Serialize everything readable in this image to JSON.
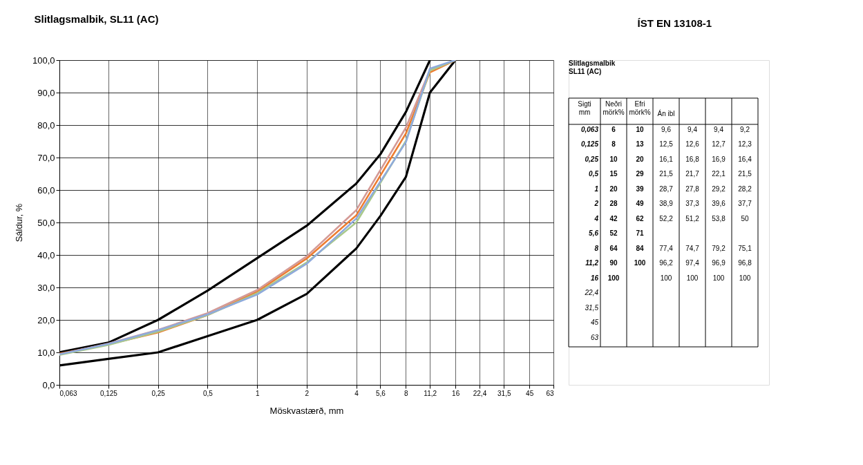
{
  "chart_data": [
    {
      "type": "line",
      "title": "Slitlagsmalbik, SL11 (AC)",
      "xlabel": "Möskvastærð, mm",
      "ylabel": "Sáldur, %",
      "log": "x",
      "grid": true,
      "xlim": [
        0.063,
        63
      ],
      "xticks": [
        {
          "value": 0.063,
          "label": "0,063"
        },
        {
          "value": 0.125,
          "label": "0,125"
        },
        {
          "value": 0.25,
          "label": "0,25"
        },
        {
          "value": 0.5,
          "label": "0,5"
        },
        1,
        2,
        4,
        {
          "value": 5.6,
          "label": "5,6"
        },
        8,
        {
          "value": 11.2,
          "label": "11,2"
        },
        16,
        {
          "value": 22.4,
          "label": "22,4"
        },
        {
          "value": 31.5,
          "label": "31,5"
        },
        45,
        63
      ],
      "ylim": [
        0,
        100
      ],
      "yticks": [
        {
          "value": 0,
          "label": "0,0"
        },
        {
          "value": 10,
          "label": "10,0"
        },
        {
          "value": 20,
          "label": "20,0"
        },
        {
          "value": 30,
          "label": "30,0"
        },
        {
          "value": 40,
          "label": "40,0"
        },
        {
          "value": 50,
          "label": "50,0"
        },
        {
          "value": 60,
          "label": "60,0"
        },
        {
          "value": 70,
          "label": "70,0"
        },
        {
          "value": 80,
          "label": "80,0"
        },
        {
          "value": 90,
          "label": "90,0"
        },
        {
          "value": 100,
          "label": "100,0"
        }
      ],
      "series": [
        {
          "color": "#000000",
          "x": [
            0.063,
            0.125,
            0.25,
            0.5,
            1,
            2,
            4,
            5.6,
            8,
            11.2,
            16
          ],
          "values": [
            6,
            8,
            10,
            15,
            20,
            28,
            42,
            52,
            64,
            90,
            100
          ]
        },
        {
          "color": "#000000",
          "x": [
            0.063,
            0.125,
            0.25,
            0.5,
            1,
            2,
            4,
            5.6,
            8,
            11.2
          ],
          "values": [
            10,
            13,
            20,
            29,
            39,
            49,
            62,
            71,
            84,
            100
          ]
        },
        {
          "color": "#ed7d31",
          "x": [
            0.063,
            0.125,
            0.25,
            0.5,
            1,
            2,
            4,
            8,
            11.2,
            16
          ],
          "values": [
            9.6,
            12.5,
            16.1,
            21.5,
            28.7,
            38.9,
            52.2,
            77.4,
            96.2,
            100
          ]
        },
        {
          "color": "#d49a96",
          "x": [
            0.063,
            0.125,
            0.25,
            0.5,
            1,
            2,
            4,
            8,
            11.2,
            16
          ],
          "values": [
            9.4,
            12.7,
            16.9,
            22.1,
            29.2,
            39.6,
            53.8,
            79.2,
            96.9,
            100
          ]
        },
        {
          "color": "#a9c98a",
          "x": [
            0.063,
            0.125,
            0.25,
            0.5,
            1,
            2,
            4,
            8,
            11.2,
            16
          ],
          "values": [
            9.2,
            12.3,
            16.4,
            21.5,
            28.2,
            37.7,
            50,
            75.1,
            96.8,
            100
          ]
        },
        {
          "color": "#8faadc",
          "x": [
            0.063,
            0.125,
            0.25,
            0.5,
            1,
            2,
            4,
            8,
            11.2,
            16
          ],
          "values": [
            9.4,
            12.6,
            16.8,
            21.7,
            27.8,
            37.3,
            51.2,
            74.7,
            97.4,
            100
          ]
        }
      ]
    },
    {
      "type": "heatmap",
      "title": "ÍST EN 13108-1",
      "subtitle": "Slitlagsmalbik\nSL11 (AC)",
      "ylabel": "Sigti\nmm",
      "categories": [
        "Neðri\nmörk%",
        "Efri\nmörk%",
        "Án ibl",
        null,
        null,
        null
      ],
      "y_categories": [
        "0,063",
        "0,125",
        "0,25",
        "0,5",
        "1",
        "2",
        "4",
        "5,6",
        "8",
        "11,2",
        "16",
        "22,4",
        "31,5",
        "45",
        "63"
      ],
      "cells": [
        [
          6,
          10,
          9.6,
          9.4,
          9.4,
          9.2
        ],
        [
          8,
          13,
          12.5,
          12.6,
          12.7,
          12.3
        ],
        [
          10,
          20,
          16.1,
          16.8,
          16.9,
          16.4
        ],
        [
          15,
          29,
          21.5,
          21.7,
          22.1,
          21.5
        ],
        [
          20,
          39,
          28.7,
          27.8,
          29.2,
          28.2
        ],
        [
          28,
          49,
          38.9,
          37.3,
          39.6,
          37.7
        ],
        [
          42,
          62,
          52.2,
          51.2,
          53.8,
          50
        ],
        [
          52,
          71,
          null,
          null,
          null,
          null
        ],
        [
          64,
          84,
          77.4,
          74.7,
          79.2,
          75.1
        ],
        [
          90,
          100,
          96.2,
          97.4,
          96.9,
          96.8
        ],
        [
          100,
          null,
          100,
          100,
          100,
          100
        ],
        [
          null,
          null,
          null,
          null,
          null,
          null
        ],
        [
          null,
          null,
          null,
          null,
          null,
          null
        ],
        [
          null,
          null,
          null,
          null,
          null,
          null
        ],
        [
          null,
          null,
          null,
          null,
          null,
          null
        ]
      ],
      "cell_labels": [
        [
          "6",
          "10",
          "9,6",
          "9,4",
          "9,4",
          "9,2"
        ],
        [
          "8",
          "13",
          "12,5",
          "12,6",
          "12,7",
          "12,3"
        ],
        [
          "10",
          "20",
          "16,1",
          "16,8",
          "16,9",
          "16,4"
        ],
        [
          "15",
          "29",
          "21,5",
          "21,7",
          "22,1",
          "21,5"
        ],
        [
          "20",
          "39",
          "28,7",
          "27,8",
          "29,2",
          "28,2"
        ],
        [
          "28",
          "49",
          "38,9",
          "37,3",
          "39,6",
          "37,7"
        ],
        [
          "42",
          "62",
          "52,2",
          "51,2",
          "53,8",
          "50"
        ],
        [
          "52",
          "71",
          null,
          null,
          null,
          null
        ],
        [
          "64",
          "84",
          "77,4",
          "74,7",
          "79,2",
          "75,1"
        ],
        [
          "90",
          "100",
          "96,2",
          "97,4",
          "96,9",
          "96,8"
        ],
        [
          "100",
          null,
          "100",
          "100",
          "100",
          "100"
        ],
        [
          null,
          null,
          null,
          null,
          null,
          null
        ],
        [
          null,
          null,
          null,
          null,
          null,
          null
        ],
        [
          null,
          null,
          null,
          null,
          null,
          null
        ],
        [
          null,
          null,
          null,
          null,
          null,
          null
        ]
      ]
    }
  ]
}
